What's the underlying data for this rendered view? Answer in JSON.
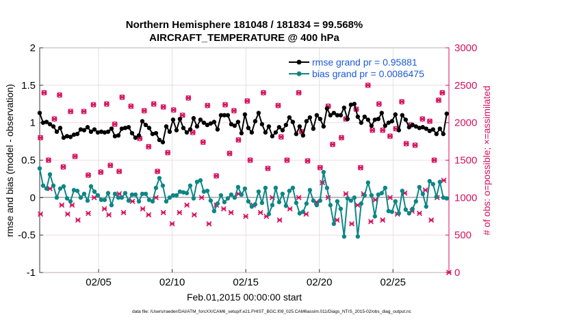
{
  "chart_data": {
    "type": "line",
    "title_line1": "Northern Hemisphere 181048 / 181834 = 99.568%",
    "title_line2": "AIRCRAFT_TEMPERATURE @ 400 hPa",
    "xlabel": "Feb.01,2015 00:00:00 start",
    "ylabel_left": "rmse and bias (model - observation)",
    "ylabel_right": "# of obs: o=possible; ×=assimilated",
    "footer": "data file: /Users/raeder/DAI/ATM_forcXX/CAM6_setup/f.e21.FHIST_BGC.f09_025.CAM6assim.011/Diags_NTrS_2015-02/obs_diag_output.nc",
    "xlim": [
      1,
      28.8
    ],
    "ylim_left": [
      -1,
      2
    ],
    "ylim_right": [
      0,
      3000
    ],
    "x_ticks": [
      5,
      10,
      15,
      20,
      25
    ],
    "x_tick_labels": [
      "02/05",
      "02/10",
      "02/15",
      "02/20",
      "02/25"
    ],
    "y_left_ticks": [
      "-1",
      "-0.5",
      "0",
      "0.5",
      "1",
      "1.5",
      "2"
    ],
    "y_right_ticks": [
      "0",
      "500",
      "1000",
      "1500",
      "2000",
      "2500",
      "3000"
    ],
    "colors": {
      "rmse": "#000000",
      "bias": "#0e8585",
      "obs": "#d6105d",
      "zero": "#bbbbbb"
    },
    "legend": {
      "rmse": "rmse grand pr = 0.95881",
      "bias": "bias grand pr = 0.0086475"
    },
    "series": [
      {
        "name": "rmse",
        "values": [
          1.13,
          1.0,
          1.01,
          0.98,
          0.95,
          0.88,
          0.93,
          0.8,
          0.82,
          0.81,
          0.84,
          0.85,
          0.91,
          0.9,
          0.94,
          0.88,
          0.91,
          0.87,
          0.88,
          0.87,
          0.88,
          0.92,
          0.82,
          0.83,
          0.92,
          0.93,
          0.94,
          0.86,
          0.8,
          0.83,
          1.02,
          0.97,
          0.93,
          0.85,
          0.86,
          0.77,
          0.74,
          0.95,
          0.88,
          1.04,
          0.9,
          1.05,
          0.93,
          0.87,
          0.91,
          1.06,
          0.95,
          1.04,
          1.0,
          0.97,
          0.99,
          1.01,
          0.91,
          1.1,
          1.1,
          1.1,
          0.98,
          0.96,
          1.01,
          0.86,
          1.11,
          0.93,
          0.87,
          1.02,
          1.13,
          0.98,
          0.87,
          0.95,
          0.82,
          0.87,
          0.94,
          0.9,
          0.97,
          1.07,
          1.01,
          0.85,
          0.95,
          0.83,
          1.02,
          1.07,
          0.92,
          1.1,
          1.05,
          0.95,
          1.19,
          1.1,
          1.13,
          1.1,
          1.1,
          1.2,
          1.05,
          1.24,
          1.25,
          1.08,
          1.0,
          1.08,
          1.04,
          0.96,
          1.04,
          1.05,
          1.13,
          0.96,
          1.0,
          1.02,
          1.11,
          0.9,
          1.1,
          1.04,
          0.94,
          0.97,
          0.95,
          0.93,
          0.94,
          0.92,
          0.89,
          0.91,
          0.85,
          0.92,
          0.85,
          1.12
        ],
        "markers": {
          "o": "filled circle"
        }
      },
      {
        "name": "bias",
        "values": [
          0.39,
          0.16,
          0.12,
          0.31,
          0.16,
          0.0,
          0.12,
          0.15,
          -0.01,
          -0.05,
          0.1,
          0.09,
          0.0,
          0.05,
          -0.04,
          0.15,
          0.08,
          0.03,
          -0.03,
          -0.03,
          0.06,
          -0.1,
          0.05,
          0.0,
          0.0,
          0.06,
          -0.04,
          0.04,
          0.04,
          -0.05,
          0.05,
          0.05,
          -0.03,
          -0.05,
          0.13,
          0.26,
          0.16,
          -0.05,
          0.0,
          0.03,
          0.03,
          0.08,
          0.07,
          0.06,
          0.16,
          -0.01,
          0.21,
          0.23,
          0.08,
          0.09,
          -0.04,
          -0.18,
          -0.08,
          0.03,
          -0.06,
          -0.01,
          0.04,
          0.0,
          0.14,
          0.04,
          0.12,
          -0.05,
          -0.12,
          -0.09,
          0.08,
          -0.07,
          0.13,
          -0.22,
          -0.1,
          0.13,
          -0.06,
          0.05,
          -0.11,
          0.09,
          0.13,
          -0.07,
          -0.21,
          -0.19,
          -0.08,
          0.1,
          -0.04,
          -0.1,
          -0.04,
          0.34,
          0.13,
          -0.1,
          -0.35,
          -0.05,
          -0.15,
          -0.52,
          -0.01,
          -0.04,
          0.0,
          -0.52,
          -0.08,
          0.03,
          0.2,
          0.03,
          -0.25,
          0.04,
          0.06,
          0.13,
          -0.18,
          -0.19,
          -0.05,
          -0.21,
          0.09,
          -0.16,
          -0.21,
          -0.15,
          -0.05,
          0.14,
          0.05,
          -0.12,
          0.22,
          0.18,
          0.01,
          0.21,
          0.0,
          -0.01
        ],
        "markers": {
          "o": "filled circle"
        }
      }
    ],
    "obs_possible": [
      [
        1.05,
        1800
      ],
      [
        1.3,
        2400
      ],
      [
        1.6,
        1500
      ],
      [
        2.0,
        2050
      ],
      [
        2.35,
        2370
      ],
      [
        2.6,
        1410
      ],
      [
        3.1,
        2150
      ],
      [
        3.4,
        1550
      ],
      [
        4.0,
        2150
      ],
      [
        4.3,
        1300
      ],
      [
        4.65,
        2240
      ],
      [
        5.15,
        1340
      ],
      [
        5.55,
        2250
      ],
      [
        5.8,
        1430
      ],
      [
        6.1,
        1980
      ],
      [
        6.4,
        1350
      ],
      [
        6.6,
        2340
      ],
      [
        7.2,
        2220
      ],
      [
        7.8,
        1790
      ],
      [
        8.1,
        2160
      ],
      [
        8.4,
        1680
      ],
      [
        8.75,
        2250
      ],
      [
        9.0,
        1350
      ],
      [
        9.4,
        2210
      ],
      [
        9.7,
        1600
      ],
      [
        10.1,
        2170
      ],
      [
        10.7,
        2100
      ],
      [
        11.1,
        2330
      ],
      [
        11.4,
        1870
      ],
      [
        12.1,
        1740
      ],
      [
        12.4,
        2230
      ],
      [
        13.0,
        1290
      ],
      [
        13.6,
        2240
      ],
      [
        13.9,
        1590
      ],
      [
        14.2,
        2160
      ],
      [
        14.5,
        1770
      ],
      [
        15.1,
        2290
      ],
      [
        15.3,
        1500
      ],
      [
        16.2,
        2400
      ],
      [
        16.5,
        1390
      ],
      [
        17.2,
        2230
      ],
      [
        17.4,
        1810
      ],
      [
        17.8,
        1500
      ],
      [
        18.6,
        2400
      ],
      [
        18.8,
        1880
      ],
      [
        19.2,
        1490
      ],
      [
        20.05,
        1400
      ],
      [
        20.6,
        2220
      ],
      [
        20.9,
        1710
      ],
      [
        21.5,
        1800
      ],
      [
        21.8,
        2050
      ],
      [
        22.5,
        2180
      ],
      [
        22.8,
        1400
      ],
      [
        23.3,
        2500
      ],
      [
        23.6,
        1900
      ],
      [
        24.05,
        2250
      ],
      [
        24.3,
        1900
      ],
      [
        24.8,
        1820
      ],
      [
        25.2,
        1920
      ],
      [
        25.6,
        2280
      ],
      [
        25.9,
        1720
      ],
      [
        26.2,
        1970
      ],
      [
        26.5,
        1700
      ],
      [
        27.0,
        2050
      ],
      [
        27.5,
        2020
      ],
      [
        27.8,
        1500
      ],
      [
        28.1,
        2300
      ],
      [
        28.35,
        2400
      ]
    ],
    "obs_assimilated": [
      [
        1.05,
        1800
      ],
      [
        1.3,
        2400
      ],
      [
        1.6,
        1500
      ],
      [
        2.0,
        2050
      ],
      [
        2.35,
        2370
      ],
      [
        2.6,
        1410
      ],
      [
        3.1,
        2150
      ],
      [
        3.4,
        1550
      ],
      [
        4.0,
        2150
      ],
      [
        4.3,
        1300
      ],
      [
        4.65,
        2240
      ],
      [
        5.15,
        1340
      ],
      [
        5.55,
        2250
      ],
      [
        5.8,
        1430
      ],
      [
        6.1,
        1980
      ],
      [
        6.4,
        1350
      ],
      [
        6.6,
        2340
      ],
      [
        7.2,
        2220
      ],
      [
        7.8,
        1790
      ],
      [
        8.1,
        2160
      ],
      [
        8.4,
        1680
      ],
      [
        8.75,
        2250
      ],
      [
        9.0,
        1350
      ],
      [
        9.4,
        2210
      ],
      [
        9.7,
        1600
      ],
      [
        10.1,
        2170
      ],
      [
        10.7,
        2100
      ],
      [
        11.1,
        2330
      ],
      [
        11.4,
        1870
      ],
      [
        12.1,
        1740
      ],
      [
        12.4,
        2230
      ],
      [
        13.0,
        1290
      ],
      [
        13.6,
        2240
      ],
      [
        13.9,
        1590
      ],
      [
        14.2,
        2160
      ],
      [
        14.5,
        1770
      ],
      [
        15.1,
        2290
      ],
      [
        15.3,
        1500
      ],
      [
        16.2,
        2400
      ],
      [
        16.5,
        1390
      ],
      [
        17.2,
        2230
      ],
      [
        17.4,
        1810
      ],
      [
        17.8,
        1500
      ],
      [
        18.6,
        2400
      ],
      [
        18.8,
        1880
      ],
      [
        19.2,
        1490
      ],
      [
        20.05,
        1400
      ],
      [
        20.6,
        2220
      ],
      [
        20.9,
        1710
      ],
      [
        21.5,
        1800
      ],
      [
        21.8,
        2050
      ],
      [
        22.5,
        2180
      ],
      [
        22.8,
        1400
      ],
      [
        23.3,
        2500
      ],
      [
        23.6,
        1900
      ],
      [
        24.05,
        2250
      ],
      [
        24.3,
        1900
      ],
      [
        24.8,
        1820
      ],
      [
        25.2,
        1920
      ],
      [
        25.6,
        2280
      ],
      [
        25.9,
        1720
      ],
      [
        26.2,
        1970
      ],
      [
        26.5,
        1700
      ],
      [
        27.0,
        2050
      ],
      [
        27.5,
        2020
      ],
      [
        27.8,
        1500
      ],
      [
        28.1,
        2300
      ],
      [
        28.35,
        2400
      ],
      [
        1.05,
        780
      ],
      [
        1.7,
        1120
      ],
      [
        2.5,
        900
      ],
      [
        2.9,
        780
      ],
      [
        3.2,
        900
      ],
      [
        3.6,
        700
      ],
      [
        4.3,
        790
      ],
      [
        4.7,
        1000
      ],
      [
        5.4,
        850
      ],
      [
        5.7,
        770
      ],
      [
        6.4,
        1050
      ],
      [
        6.7,
        800
      ],
      [
        7.3,
        950
      ],
      [
        8.0,
        850
      ],
      [
        8.4,
        770
      ],
      [
        8.9,
        1000
      ],
      [
        9.4,
        800
      ],
      [
        10.0,
        650
      ],
      [
        10.5,
        800
      ],
      [
        11.0,
        900
      ],
      [
        11.5,
        770
      ],
      [
        12.0,
        1000
      ],
      [
        12.5,
        650
      ],
      [
        13.0,
        900
      ],
      [
        13.5,
        850
      ],
      [
        14.0,
        800
      ],
      [
        14.5,
        1050
      ],
      [
        15.0,
        750
      ],
      [
        15.5,
        900
      ],
      [
        16.0,
        800
      ],
      [
        16.4,
        750
      ],
      [
        16.8,
        1000
      ],
      [
        17.3,
        700
      ],
      [
        18.0,
        850
      ],
      [
        18.6,
        1000
      ],
      [
        19.1,
        780
      ],
      [
        19.8,
        940
      ],
      [
        20.2,
        1200
      ],
      [
        20.6,
        1000
      ],
      [
        21.2,
        700
      ],
      [
        21.8,
        1050
      ],
      [
        22.2,
        650
      ],
      [
        22.6,
        900
      ],
      [
        23.0,
        1050
      ],
      [
        23.5,
        680
      ],
      [
        23.8,
        970
      ],
      [
        24.3,
        700
      ],
      [
        24.8,
        1000
      ],
      [
        25.3,
        780
      ],
      [
        25.8,
        1060
      ],
      [
        26.3,
        820
      ],
      [
        26.8,
        790
      ],
      [
        27.2,
        1100
      ],
      [
        27.6,
        700
      ],
      [
        28.0,
        1000
      ],
      [
        28.45,
        1230
      ],
      [
        28.8,
        0
      ]
    ]
  }
}
